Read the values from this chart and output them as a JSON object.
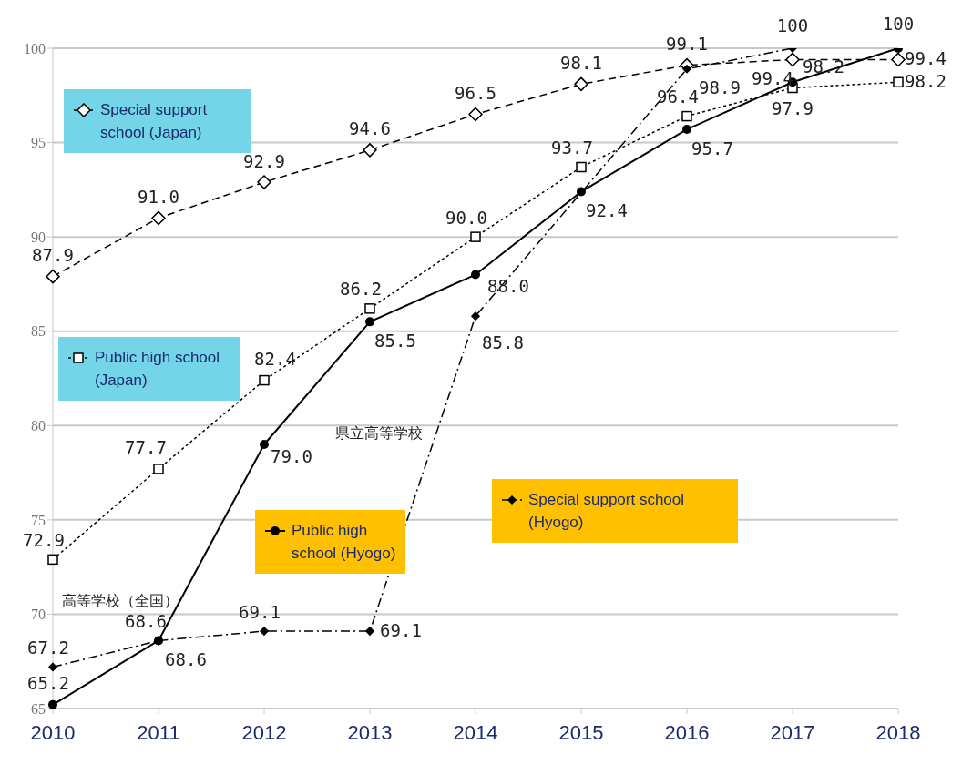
{
  "chart_data": {
    "type": "line",
    "categories": [
      "2010",
      "2011",
      "2012",
      "2013",
      "2014",
      "2015",
      "2016",
      "2017",
      "2018"
    ],
    "series": [
      {
        "name": "Special support school (Japan)",
        "color": "#000000",
        "marker": "diamond",
        "line_style": "dashed",
        "values": [
          87.9,
          91.0,
          92.9,
          94.6,
          96.5,
          98.1,
          99.1,
          99.4,
          99.4
        ],
        "value_labels": [
          "87.9",
          "91.0",
          "92.9",
          "94.6",
          "96.5",
          "98.1",
          "99.1",
          "99.4",
          "99.4"
        ]
      },
      {
        "name": "Public high school (Japan)",
        "color": "#000000",
        "marker": "square",
        "line_style": "dotted",
        "values": [
          72.9,
          77.7,
          82.4,
          86.2,
          90.0,
          93.7,
          96.4,
          97.9,
          98.2
        ],
        "value_labels": [
          "72.9",
          "77.7",
          "82.4",
          "86.2",
          "90.0",
          "93.7",
          "96.4",
          "97.9",
          "98.2"
        ]
      },
      {
        "name": "Public high school (Hyogo)",
        "color": "#000000",
        "marker": "circle",
        "line_style": "solid",
        "values": [
          65.2,
          68.6,
          79.0,
          85.5,
          88.0,
          92.4,
          95.7,
          98.2,
          100
        ],
        "value_labels": [
          "65.2",
          "68.6",
          "79.0",
          "85.5",
          "88.0",
          "92.4",
          "95.7",
          "98.2",
          "100"
        ]
      },
      {
        "name": "Special support school (Hyogo)",
        "color": "#000000",
        "marker": "diamond",
        "line_style": "dashdot",
        "values": [
          67.2,
          68.6,
          69.1,
          69.1,
          85.8,
          null,
          98.9,
          100,
          null
        ],
        "value_labels": [
          "67.2",
          "68.6",
          "69.1",
          "69.1",
          "85.8",
          null,
          "98.9",
          "100",
          null
        ]
      }
    ],
    "annotations": [
      "高等学校（全国）",
      "県立高等学校"
    ],
    "ylim": [
      65,
      100
    ],
    "yticks": [
      65,
      70,
      75,
      80,
      85,
      90,
      95,
      100
    ],
    "grid": "y",
    "legend": "left"
  }
}
